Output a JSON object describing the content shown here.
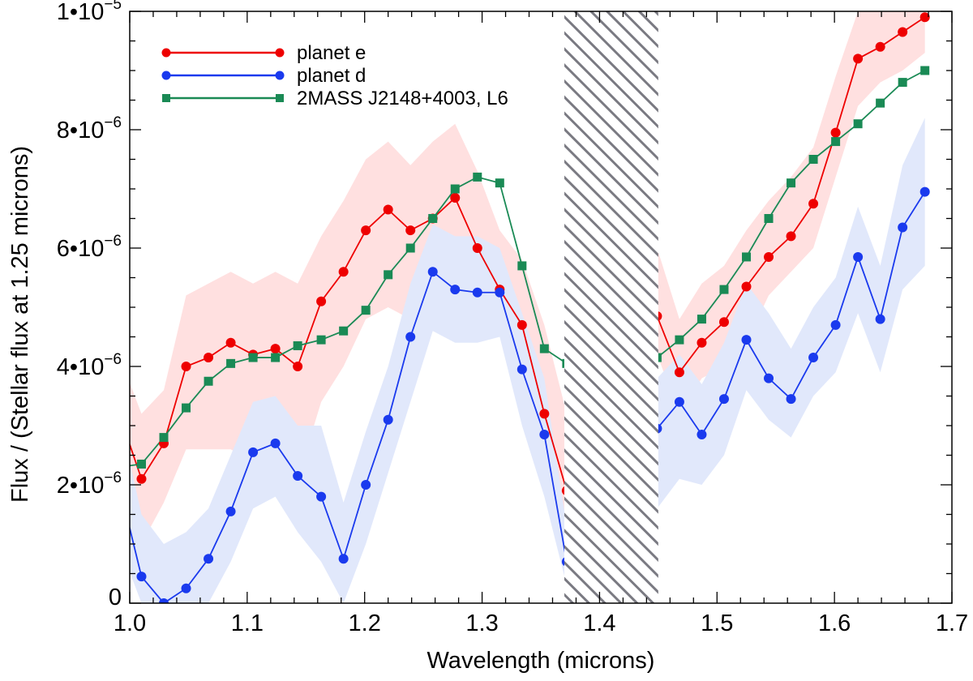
{
  "chart_data": {
    "type": "line",
    "title": "",
    "xlabel": "Wavelength (microns)",
    "ylabel": "Flux / (Stellar flux at 1.25 microns)",
    "xlim": [
      1.0,
      1.7
    ],
    "ylim": [
      0,
      1e-05
    ],
    "x_ticks": [
      {
        "value": 1.0,
        "label": "1.0"
      },
      {
        "value": 1.1,
        "label": "1.1"
      },
      {
        "value": 1.2,
        "label": "1.2"
      },
      {
        "value": 1.3,
        "label": "1.3"
      },
      {
        "value": 1.4,
        "label": "1.4"
      },
      {
        "value": 1.5,
        "label": "1.5"
      },
      {
        "value": 1.6,
        "label": "1.6"
      },
      {
        "value": 1.7,
        "label": "1.7"
      }
    ],
    "y_ticks": [
      {
        "value": 0,
        "label": "0",
        "exp": ""
      },
      {
        "value": 2e-06,
        "label": "2•10",
        "exp": "−6"
      },
      {
        "value": 4e-06,
        "label": "4•10",
        "exp": "−6"
      },
      {
        "value": 6e-06,
        "label": "6•10",
        "exp": "−6"
      },
      {
        "value": 8e-06,
        "label": "8•10",
        "exp": "−6"
      },
      {
        "value": 1e-05,
        "label": "1•10",
        "exp": "−5"
      }
    ],
    "excluded_region": [
      1.37,
      1.45
    ],
    "series": [
      {
        "name": "planet e",
        "color": "#ee0000",
        "band_color": "#ffe0e0",
        "marker": "circle",
        "x": [
          0.991,
          1.01,
          1.029,
          1.048,
          1.067,
          1.086,
          1.105,
          1.124,
          1.143,
          1.163,
          1.182,
          1.201,
          1.22,
          1.239,
          1.258,
          1.277,
          1.296,
          1.315,
          1.334,
          1.353,
          1.372,
          1.449,
          1.468,
          1.487,
          1.506,
          1.525,
          1.544,
          1.563,
          1.582,
          1.601,
          1.62,
          1.639,
          1.658,
          1.677
        ],
        "values": [
          3.2e-06,
          2.1e-06,
          2.7e-06,
          4e-06,
          4.15e-06,
          4.4e-06,
          4.2e-06,
          4.3e-06,
          4e-06,
          5.1e-06,
          5.6e-06,
          6.3e-06,
          6.65e-06,
          6.3e-06,
          6.5e-06,
          6.85e-06,
          6e-06,
          5.3e-06,
          4.7e-06,
          3.2e-06,
          1.9e-06,
          4.85e-06,
          3.9e-06,
          4.4e-06,
          4.75e-06,
          5.35e-06,
          5.85e-06,
          6.2e-06,
          6.75e-06,
          7.95e-06,
          9.2e-06,
          9.4e-06,
          9.65e-06,
          9.9e-06
        ],
        "err_lower": [
          2e-06,
          1e-06,
          1.7e-06,
          2.6e-06,
          2.6e-06,
          2.6e-06,
          2.4e-06,
          2.6e-06,
          2.1e-06,
          3.4e-06,
          4e-06,
          4.8e-06,
          5e-06,
          4.8e-06,
          5.3e-06,
          5.8e-06,
          5.3e-06,
          4.6e-06,
          3.4e-06,
          2e-06,
          8e-07,
          4.2e-06,
          3.2e-06,
          3.8e-06,
          4e-06,
          4.4e-06,
          5.2e-06,
          5.6e-06,
          6e-06,
          7.2e-06,
          8.4e-06,
          8.8e-06,
          9e-06,
          9.3e-06
        ],
        "err_upper": [
          4.2e-06,
          3.2e-06,
          3.6e-06,
          5.2e-06,
          5.4e-06,
          5.6e-06,
          5.4e-06,
          5.6e-06,
          5.4e-06,
          6.2e-06,
          6.8e-06,
          7.5e-06,
          7.8e-06,
          7.4e-06,
          7.8e-06,
          8.1e-06,
          7.3e-06,
          6.3e-06,
          5.8e-06,
          4.7e-06,
          3.2e-06,
          6e-06,
          4.8e-06,
          5.4e-06,
          5.7e-06,
          6.3e-06,
          6.8e-06,
          7.2e-06,
          7.7e-06,
          8.9e-06,
          1e-05,
          1e-05,
          1e-05,
          1e-05
        ]
      },
      {
        "name": "planet d",
        "color": "#1a3aee",
        "band_color": "#e1e8fb",
        "marker": "circle",
        "x": [
          0.991,
          1.01,
          1.029,
          1.048,
          1.067,
          1.086,
          1.105,
          1.124,
          1.143,
          1.163,
          1.182,
          1.201,
          1.22,
          1.239,
          1.258,
          1.277,
          1.296,
          1.315,
          1.334,
          1.353,
          1.372,
          1.449,
          1.468,
          1.487,
          1.506,
          1.525,
          1.544,
          1.563,
          1.582,
          1.601,
          1.62,
          1.639,
          1.658,
          1.677
        ],
        "values": [
          2e-06,
          4.5e-07,
          0.0,
          2.5e-07,
          7.5e-07,
          1.55e-06,
          2.55e-06,
          2.7e-06,
          2.15e-06,
          1.8e-06,
          7.5e-07,
          2e-06,
          3.1e-06,
          4.5e-06,
          5.6e-06,
          5.3e-06,
          5.25e-06,
          5.25e-06,
          3.95e-06,
          2.85e-06,
          7e-07,
          2.95e-06,
          3.4e-06,
          2.85e-06,
          3.45e-06,
          4.45e-06,
          3.8e-06,
          3.45e-06,
          4.15e-06,
          4.7e-06,
          5.85e-06,
          4.8e-06,
          6.35e-06,
          6.95e-06
        ],
        "err_lower": [
          1e-06,
          0.0,
          0.0,
          0.0,
          0.0,
          7e-07,
          1.6e-06,
          1.8e-06,
          1.2e-06,
          7e-07,
          0.0,
          1e-06,
          2.2e-06,
          3.4e-06,
          4.6e-06,
          4.4e-06,
          4.4e-06,
          4.5e-06,
          3e-06,
          1.8e-06,
          3e-07,
          1.6e-06,
          2.1e-06,
          2e-06,
          2.5e-06,
          3.6e-06,
          3.1e-06,
          2.8e-06,
          3.5e-06,
          3.9e-06,
          4.9e-06,
          3.9e-06,
          5.3e-06,
          5.7e-06
        ],
        "err_upper": [
          3.2e-06,
          1.5e-06,
          1e-06,
          1.2e-06,
          1.6e-06,
          2.5e-06,
          3.4e-06,
          3.5e-06,
          3e-06,
          3e-06,
          1.7e-06,
          2.9e-06,
          4e-06,
          5.4e-06,
          6.4e-06,
          6.2e-06,
          6.2e-06,
          6e-06,
          4.9e-06,
          3.8e-06,
          1.3e-06,
          3.8e-06,
          4.2e-06,
          3.7e-06,
          4.4e-06,
          5.4e-06,
          4.9e-06,
          4.3e-06,
          5e-06,
          5.5e-06,
          6.7e-06,
          5.7e-06,
          7.4e-06,
          8.2e-06
        ]
      },
      {
        "name": "2MASS J2148+4003, L6",
        "color": "#1a8a55",
        "marker": "square",
        "x": [
          0.991,
          1.01,
          1.029,
          1.048,
          1.067,
          1.086,
          1.105,
          1.124,
          1.143,
          1.163,
          1.182,
          1.201,
          1.22,
          1.239,
          1.258,
          1.277,
          1.296,
          1.315,
          1.334,
          1.353,
          1.372,
          1.449,
          1.468,
          1.487,
          1.506,
          1.525,
          1.544,
          1.563,
          1.582,
          1.601,
          1.62,
          1.639,
          1.658,
          1.677
        ],
        "values": [
          2.3e-06,
          2.35e-06,
          2.8e-06,
          3.3e-06,
          3.75e-06,
          4.05e-06,
          4.15e-06,
          4.15e-06,
          4.35e-06,
          4.45e-06,
          4.6e-06,
          4.95e-06,
          5.55e-06,
          6e-06,
          6.5e-06,
          7e-06,
          7.2e-06,
          7.1e-06,
          5.7e-06,
          4.3e-06,
          4.05e-06,
          4.15e-06,
          4.45e-06,
          4.8e-06,
          5.3e-06,
          5.85e-06,
          6.5e-06,
          7.1e-06,
          7.5e-06,
          7.8e-06,
          8.1e-06,
          8.45e-06,
          8.8e-06,
          9e-06
        ]
      }
    ],
    "legend": {
      "position": "top-left"
    }
  }
}
